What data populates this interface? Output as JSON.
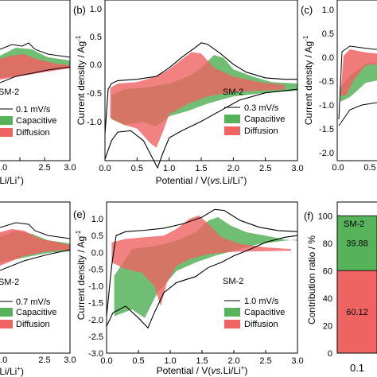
{
  "colors": {
    "capacitive": "#57b35a",
    "diffusion": "#ef6363",
    "total": "#000000"
  },
  "panels": [
    {
      "id": "a",
      "label": "",
      "sample": "SM-2",
      "scan_rate": "0.1 mV/s",
      "legend_capacitive": "Capacitive",
      "legend_diffusion": "Diffusion",
      "xticks": [
        "2.0",
        "2.5",
        "3.0"
      ],
      "xlabel_fragment": ".Li/Li",
      "xlabel_sup": "+"
    },
    {
      "id": "b",
      "label": "(b)",
      "sample": "SM-2",
      "scan_rate": "0.3 mV/s",
      "legend_capacitive": "Capacitive",
      "legend_diffusion": "Diffusion",
      "xticks": [
        "0.0",
        "0.5",
        "1.0",
        "1.5",
        "2.0",
        "2.5",
        "3.0"
      ],
      "yticks": [
        "1.0",
        "0.5",
        "0.0",
        "-0.5",
        "-1.0"
      ],
      "xlabel_pre": "Potential / V(",
      "xlabel_it": "vs.",
      "xlabel_post": "Li/Li",
      "xlabel_sup": "+",
      "xlabel_close": ")",
      "ylabel": "Current density / Ag",
      "ylabel_sup": "-1"
    },
    {
      "id": "c",
      "label": "(c)",
      "yticks": [
        "1.0",
        "0.5",
        "0.0",
        "-0.5",
        "-1.0",
        "-1.5",
        "-2.0"
      ],
      "xticks": [
        "0.0",
        "0.5"
      ],
      "ylabel": "Current density / Ag",
      "ylabel_sup": "-1"
    },
    {
      "id": "d",
      "label": "",
      "sample": "SM-2",
      "scan_rate": "0.7 mV/s",
      "legend_capacitive": "Capacitive",
      "legend_diffusion": "Diffusion",
      "xticks": [
        "2.0",
        "2.5",
        "3.0"
      ],
      "xlabel_fragment": ".Li/Li",
      "xlabel_sup": "+"
    },
    {
      "id": "e",
      "label": "(e)",
      "sample": "SM-2",
      "scan_rate": "1.0 mV/s",
      "legend_capacitive": "Capacitive",
      "legend_diffusion": "Diffusion",
      "xticks": [
        "0.0",
        "0.5",
        "1.0",
        "1.5",
        "2.0",
        "2.5",
        "3.0"
      ],
      "yticks": [
        "1.0",
        "0.5",
        "0.0",
        "-0.5",
        "-1.0",
        "-1.5",
        "-2.0",
        "-2.5",
        "-3.0"
      ],
      "xlabel_pre": "Potential / V(",
      "xlabel_it": "vs.",
      "xlabel_post": "Li/Li",
      "xlabel_sup": "+",
      "xlabel_close": ")",
      "ylabel": "Current density / Ag",
      "ylabel_sup": "-1"
    },
    {
      "id": "f",
      "label": "(f)",
      "sample": "SM-2",
      "yticks": [
        "100",
        "80",
        "60",
        "40",
        "20",
        "0"
      ],
      "xticks": [
        "0.1"
      ],
      "ylabel": "Contribution ratio / %"
    }
  ],
  "chart_data": [
    {
      "panel": "b",
      "type": "area",
      "xlabel": "Potential / V(vs.Li/Li+)",
      "ylabel": "Current density / Ag-1",
      "xlim": [
        0.0,
        3.0
      ],
      "ylim": [
        -1.0,
        1.25
      ],
      "total_upper": [
        [
          0.0,
          -0.62
        ],
        [
          0.05,
          0.0
        ],
        [
          0.1,
          0.08
        ],
        [
          0.2,
          0.12
        ],
        [
          0.5,
          0.14
        ],
        [
          0.8,
          0.18
        ],
        [
          1.0,
          0.3
        ],
        [
          1.2,
          0.45
        ],
        [
          1.4,
          0.58
        ],
        [
          1.5,
          0.65
        ],
        [
          1.6,
          0.63
        ],
        [
          1.8,
          0.5
        ],
        [
          2.0,
          0.35
        ],
        [
          2.2,
          0.24
        ],
        [
          2.5,
          0.16
        ],
        [
          2.8,
          0.14
        ],
        [
          3.0,
          0.14
        ]
      ],
      "total_lower": [
        [
          0.0,
          -0.98
        ],
        [
          0.1,
          -0.72
        ],
        [
          0.2,
          -0.6
        ],
        [
          0.4,
          -0.58
        ],
        [
          0.6,
          -0.72
        ],
        [
          0.75,
          -0.98
        ],
        [
          0.82,
          -1.1
        ],
        [
          0.9,
          -0.9
        ],
        [
          1.0,
          -0.68
        ],
        [
          1.2,
          -0.58
        ],
        [
          1.5,
          -0.45
        ],
        [
          1.8,
          -0.3
        ],
        [
          2.1,
          -0.15
        ],
        [
          2.5,
          -0.05
        ],
        [
          3.0,
          0.0
        ]
      ],
      "capacitive_upper": [
        [
          0.1,
          -0.08
        ],
        [
          0.3,
          0.0
        ],
        [
          0.6,
          0.02
        ],
        [
          1.0,
          0.08
        ],
        [
          1.3,
          0.18
        ],
        [
          1.5,
          0.3
        ],
        [
          1.7,
          0.48
        ],
        [
          1.85,
          0.44
        ],
        [
          2.0,
          0.28
        ],
        [
          2.3,
          0.18
        ],
        [
          2.6,
          0.1
        ],
        [
          3.0,
          0.08
        ]
      ],
      "capacitive_lower": [
        [
          0.1,
          -0.42
        ],
        [
          0.3,
          -0.5
        ],
        [
          0.6,
          -0.46
        ],
        [
          0.8,
          -0.52
        ],
        [
          1.0,
          -0.38
        ],
        [
          1.3,
          -0.3
        ],
        [
          1.6,
          -0.2
        ],
        [
          2.0,
          -0.1
        ],
        [
          2.5,
          -0.05
        ],
        [
          3.0,
          -0.02
        ]
      ],
      "diffusion_upper": [
        [
          0.08,
          0.02
        ],
        [
          0.2,
          0.08
        ],
        [
          0.5,
          0.1
        ],
        [
          0.8,
          0.18
        ],
        [
          1.0,
          0.28
        ],
        [
          1.2,
          0.42
        ],
        [
          1.35,
          0.52
        ],
        [
          1.5,
          0.5
        ],
        [
          1.7,
          0.3
        ],
        [
          2.0,
          0.18
        ],
        [
          2.4,
          0.1
        ],
        [
          2.8,
          0.06
        ]
      ],
      "diffusion_lower": [
        [
          0.08,
          -0.4
        ],
        [
          0.3,
          -0.5
        ],
        [
          0.5,
          -0.55
        ],
        [
          0.7,
          -0.75
        ],
        [
          0.8,
          -0.82
        ],
        [
          0.9,
          -0.6
        ],
        [
          1.0,
          -0.35
        ],
        [
          1.3,
          -0.2
        ],
        [
          1.6,
          -0.1
        ],
        [
          2.0,
          -0.04
        ],
        [
          2.8,
          0.0
        ]
      ],
      "series_names": [
        "0.3 mV/s",
        "Capacitive",
        "Diffusion"
      ]
    },
    {
      "panel": "e",
      "type": "area",
      "xlabel": "Potential / V(vs.Li/Li+)",
      "ylabel": "Current density / Ag-1",
      "xlim": [
        0.0,
        3.0
      ],
      "ylim": [
        -3.0,
        1.5
      ],
      "total_upper": [
        [
          0.0,
          -1.9
        ],
        [
          0.08,
          -0.4
        ],
        [
          0.15,
          0.5
        ],
        [
          0.3,
          0.62
        ],
        [
          0.6,
          0.66
        ],
        [
          0.9,
          0.72
        ],
        [
          1.2,
          0.85
        ],
        [
          1.5,
          1.05
        ],
        [
          1.7,
          1.28
        ],
        [
          1.85,
          1.25
        ],
        [
          2.1,
          0.95
        ],
        [
          2.4,
          0.75
        ],
        [
          2.7,
          0.65
        ],
        [
          3.0,
          0.62
        ]
      ],
      "total_lower": [
        [
          0.0,
          -2.2
        ],
        [
          0.1,
          -1.8
        ],
        [
          0.3,
          -1.6
        ],
        [
          0.5,
          -1.95
        ],
        [
          0.65,
          -2.25
        ],
        [
          0.75,
          -1.8
        ],
        [
          0.9,
          -1.2
        ],
        [
          1.1,
          -0.9
        ],
        [
          1.4,
          -0.72
        ],
        [
          1.6,
          -0.45
        ],
        [
          1.8,
          -0.3
        ],
        [
          2.0,
          -0.1
        ],
        [
          2.2,
          0.05
        ],
        [
          2.5,
          0.3
        ],
        [
          2.8,
          0.45
        ],
        [
          3.0,
          0.5
        ]
      ],
      "capacitive_upper": [
        [
          0.12,
          -0.7
        ],
        [
          0.4,
          0.1
        ],
        [
          0.8,
          0.2
        ],
        [
          1.1,
          0.35
        ],
        [
          1.4,
          0.6
        ],
        [
          1.6,
          0.95
        ],
        [
          1.75,
          1.05
        ],
        [
          1.95,
          0.8
        ],
        [
          2.2,
          0.6
        ],
        [
          2.5,
          0.5
        ],
        [
          2.8,
          0.38
        ],
        [
          3.0,
          0.35
        ]
      ],
      "capacitive_lower": [
        [
          0.12,
          -1.9
        ],
        [
          0.4,
          -1.7
        ],
        [
          0.6,
          -1.95
        ],
        [
          0.8,
          -1.2
        ],
        [
          1.1,
          -0.55
        ],
        [
          1.4,
          -0.3
        ],
        [
          1.7,
          -0.1
        ],
        [
          2.0,
          0.05
        ],
        [
          2.4,
          0.25
        ],
        [
          2.8,
          0.35
        ],
        [
          3.0,
          0.38
        ]
      ],
      "diffusion_upper": [
        [
          0.08,
          0.3
        ],
        [
          0.3,
          0.4
        ],
        [
          0.6,
          0.45
        ],
        [
          0.9,
          0.5
        ],
        [
          1.1,
          0.7
        ],
        [
          1.3,
          1.0
        ],
        [
          1.45,
          1.1
        ],
        [
          1.6,
          0.85
        ],
        [
          1.8,
          0.45
        ],
        [
          2.1,
          0.25
        ],
        [
          2.5,
          0.15
        ],
        [
          2.9,
          0.1
        ]
      ],
      "diffusion_lower": [
        [
          0.08,
          -0.3
        ],
        [
          0.3,
          -0.5
        ],
        [
          0.55,
          -0.6
        ],
        [
          0.75,
          -1.0
        ],
        [
          0.85,
          -1.6
        ],
        [
          0.95,
          -0.9
        ],
        [
          1.1,
          -0.4
        ],
        [
          1.3,
          -0.2
        ],
        [
          1.6,
          -0.05
        ],
        [
          2.0,
          0.02
        ],
        [
          2.9,
          0.05
        ]
      ],
      "series_names": [
        "1.0 mV/s",
        "Capacitive",
        "Diffusion"
      ]
    },
    {
      "panel": "f",
      "type": "bar",
      "categories": [
        "0.1"
      ],
      "series": [
        {
          "name": "Capacitive",
          "values": [
            39.88
          ]
        },
        {
          "name": "Diffusion",
          "values": [
            60.12
          ]
        }
      ],
      "ylabel": "Contribution ratio / %",
      "ylim": [
        0,
        110
      ]
    }
  ]
}
